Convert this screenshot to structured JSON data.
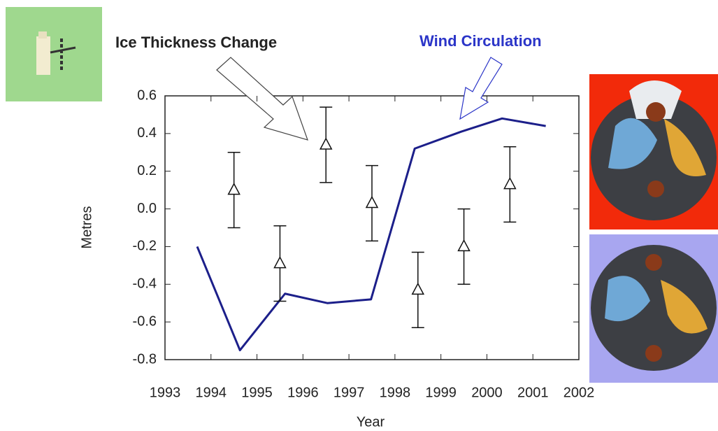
{
  "chart_data": {
    "type": "line",
    "x_label": "Year",
    "y_label": "Metres",
    "xlim": [
      1993,
      2002
    ],
    "xticks": [
      1993,
      1994,
      1995,
      1996,
      1997,
      1998,
      1999,
      2000,
      2001,
      2002
    ],
    "ylim": [
      -0.8,
      0.6
    ],
    "yticks": [
      -0.8,
      -0.6,
      -0.4,
      -0.2,
      {
        "value": 0,
        "label": "0.0"
      },
      0.2,
      0.4,
      0.6
    ],
    "series": [
      {
        "name": "Wind Circulation",
        "type": "line",
        "color": "#1c1f8a",
        "x": [
          1993.7,
          1994.63,
          1995.61,
          1996.53,
          1997.48,
          1998.43,
          1999.44,
          2000.33,
          2001.28
        ],
        "values": [
          -0.2,
          -0.75,
          -0.45,
          -0.5,
          -0.48,
          0.32,
          0.41,
          0.48,
          0.44
        ]
      },
      {
        "name": "Ice Thickness Change",
        "type": "errorbar",
        "color": "#111111",
        "x": [
          1994.5,
          1995.5,
          1996.5,
          1997.5,
          1998.5,
          1999.5,
          2000.5
        ],
        "values": [
          0.1,
          -0.29,
          0.34,
          0.03,
          -0.43,
          -0.2,
          0.13
        ],
        "errors": [
          0.2,
          0.2,
          0.2,
          0.2,
          0.2,
          0.2,
          0.2
        ]
      }
    ]
  }
}
